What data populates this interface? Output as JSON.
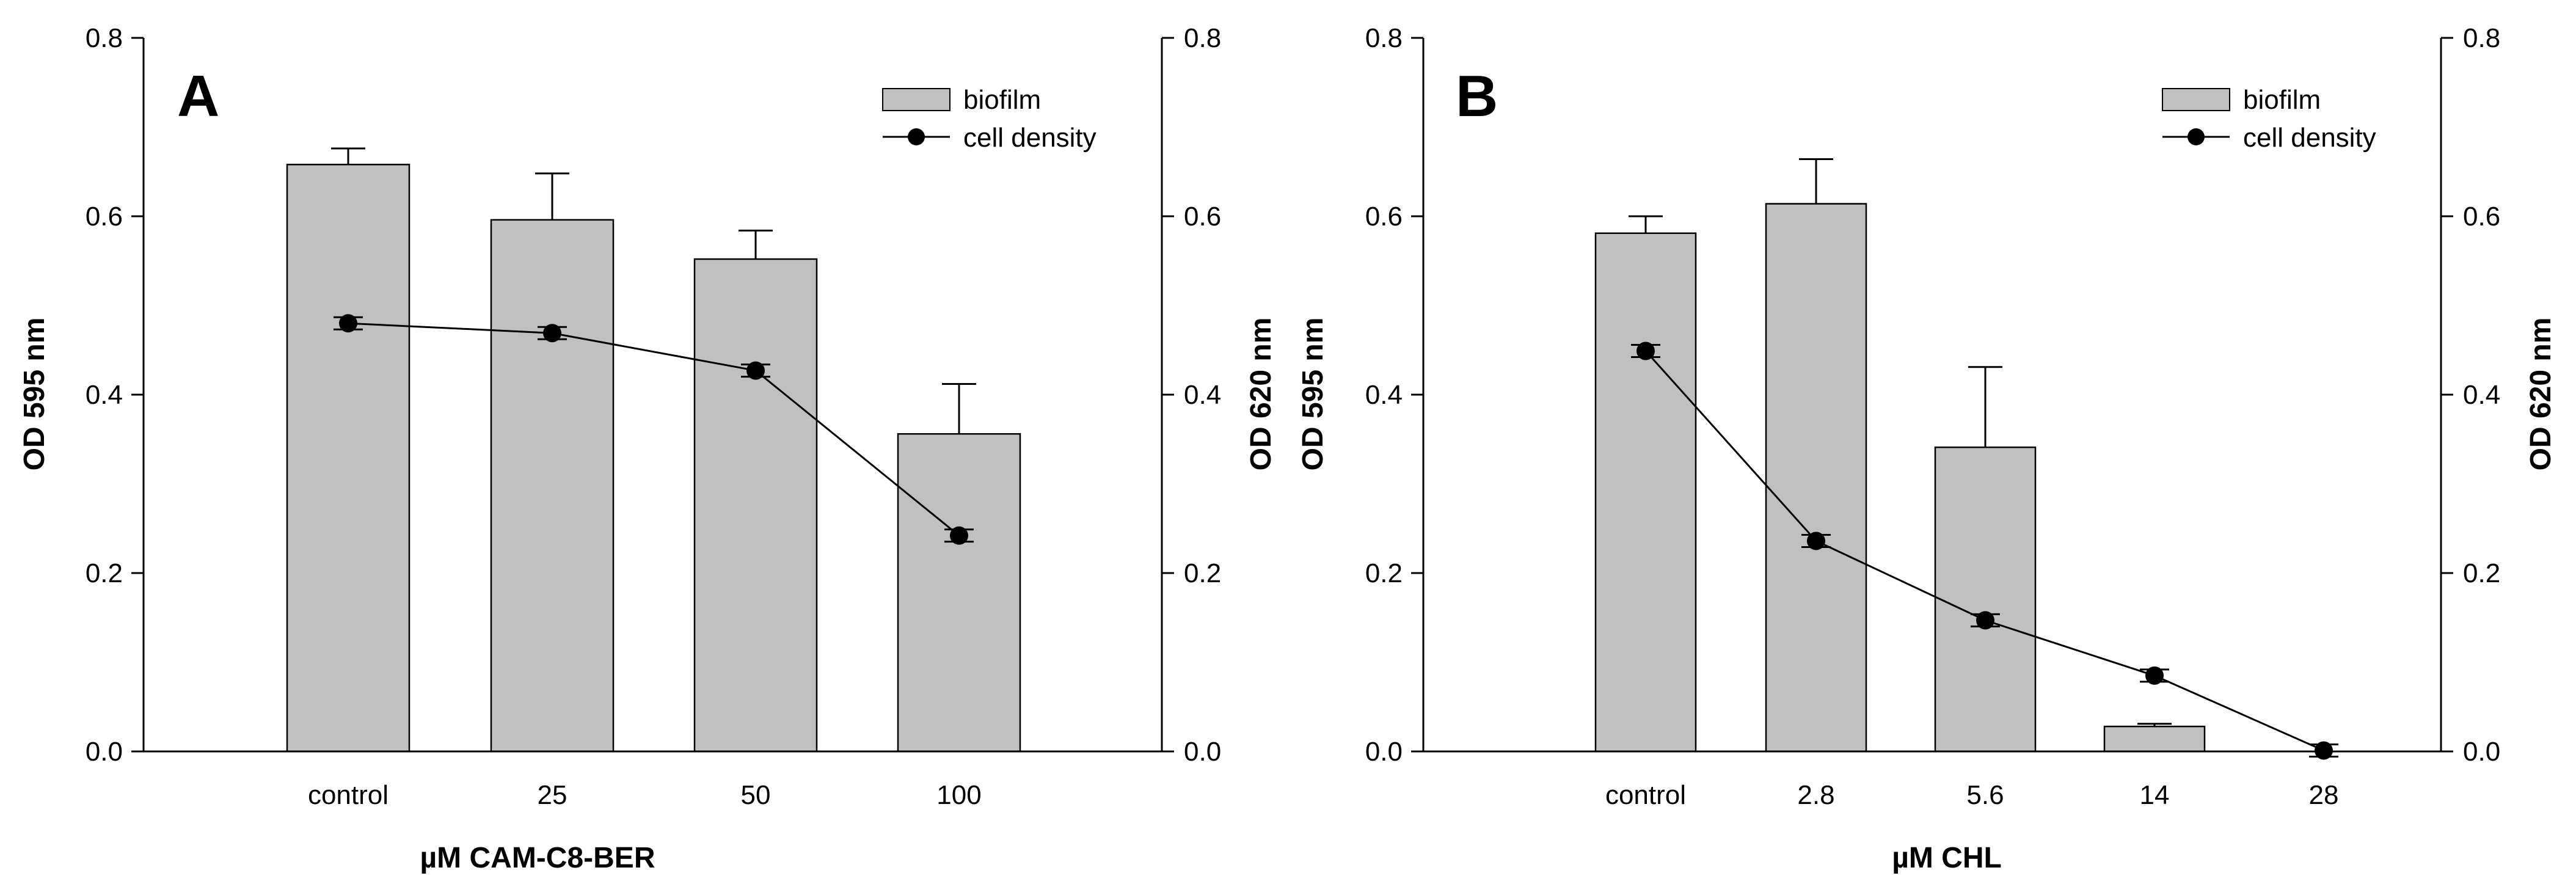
{
  "chart_data": [
    {
      "type": "bar",
      "panel_label": "A",
      "categories": [
        "control",
        "25",
        "50",
        "100"
      ],
      "series": [
        {
          "name": "biofilm",
          "kind": "bar",
          "values": [
            0.658,
            0.596,
            0.552,
            0.356
          ],
          "errors": [
            0.018,
            0.052,
            0.032,
            0.056
          ]
        },
        {
          "name": "cell density",
          "kind": "line",
          "values": [
            0.48,
            0.469,
            0.427,
            0.242
          ],
          "errors": [
            0.005,
            0.005,
            0.005,
            0.005
          ]
        }
      ],
      "xlabel": "µM CAM-C8-BER",
      "ylabel": "OD 595 nm",
      "y2label": "OD 620 nm",
      "ylim": [
        0,
        0.8
      ],
      "y2lim": [
        0,
        0.8
      ],
      "yticks": [
        "0.0",
        "0.2",
        "0.4",
        "0.6",
        "0.8"
      ],
      "legend_position": "top-right"
    },
    {
      "type": "bar",
      "panel_label": "B",
      "categories": [
        "control",
        "2.8",
        "5.6",
        "14",
        "28"
      ],
      "series": [
        {
          "name": "biofilm",
          "kind": "bar",
          "values": [
            0.581,
            0.614,
            0.341,
            0.028,
            0.0
          ],
          "errors": [
            0.019,
            0.05,
            0.09,
            0.003,
            0.0
          ]
        },
        {
          "name": "cell density",
          "kind": "line",
          "values": [
            0.449,
            0.236,
            0.147,
            0.085,
            0.001
          ],
          "errors": [
            0.005,
            0.005,
            0.005,
            0.005,
            0.002
          ]
        }
      ],
      "xlabel": "µM CHL",
      "ylabel": "OD 595 nm",
      "y2label": "OD 620 nm",
      "ylim": [
        0,
        0.8
      ],
      "y2lim": [
        0,
        0.8
      ],
      "yticks": [
        "0.0",
        "0.2",
        "0.4",
        "0.6",
        "0.8"
      ],
      "legend_position": "top-right"
    }
  ],
  "colors": {
    "bar_fill": "#c0c0c0",
    "stroke": "#000000",
    "marker": "#000000"
  }
}
